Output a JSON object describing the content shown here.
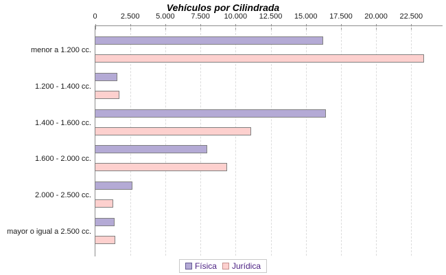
{
  "chart_data": {
    "type": "bar",
    "orientation": "horizontal",
    "title": "Vehículos por Cilindrada",
    "categories": [
      "menor a 1.200 cc.",
      "1.200 - 1.400 cc.",
      "1.400 - 1.600 cc.",
      "1.600 - 2.000 cc.",
      "2.000 - 2.500 cc.",
      "mayor o igual a 2.500 cc."
    ],
    "series": [
      {
        "name": "Física",
        "color": "#b4aad5",
        "swatch_border": "#655a94",
        "values": [
          16250,
          1600,
          16450,
          8000,
          2700,
          1400
        ]
      },
      {
        "name": "Jurídica",
        "color": "#fdd0ce",
        "swatch_border": "#c4908e",
        "values": [
          23450,
          1750,
          11150,
          9400,
          1300,
          1450
        ]
      }
    ],
    "x_tick_labels": [
      "0",
      "2.500",
      "5.000",
      "7.500",
      "10.000",
      "12.500",
      "15.000",
      "17.500",
      "20.000",
      "22.500"
    ],
    "x_tick_values": [
      0,
      2500,
      5000,
      7500,
      10000,
      12500,
      15000,
      17500,
      20000,
      22500
    ],
    "xlim": [
      0,
      24750
    ],
    "grid": "vertical-dashed",
    "legend_position": "bottom-center",
    "colors": {
      "bar_border": "#808080",
      "axis_line": "#8c8c8c",
      "gridline": "#dcdcdc",
      "title_text": "#000000",
      "tick_text": "#1a1a1a",
      "legend_text": "#4b2083",
      "legend_border": "#c8c8c8",
      "background": "#ffffff"
    }
  }
}
